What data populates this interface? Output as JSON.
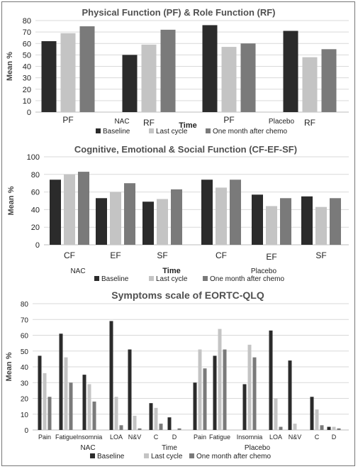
{
  "colors": {
    "baseline": "#2b2b2b",
    "last_cycle": "#c4c4c4",
    "one_month": "#7a7a7a",
    "grid": "#d9d9d9"
  },
  "chart_data": [
    {
      "type": "bar",
      "title": "Physical Function (PF) & Role Function (RF)",
      "ylabel": "Mean %",
      "xlabel": "Time",
      "ylim": [
        0,
        80
      ],
      "yticks": [
        0,
        10,
        20,
        30,
        40,
        50,
        60,
        70,
        80
      ],
      "categories": [
        "PF",
        "RF",
        "PF",
        "RF"
      ],
      "groups": [
        "NAC",
        "Placebo"
      ],
      "legend_position": "bottom",
      "series": [
        {
          "name": "Baseline",
          "values": [
            62,
            50,
            76,
            71
          ]
        },
        {
          "name": "Last cycle",
          "values": [
            69,
            59,
            57,
            48
          ]
        },
        {
          "name": "One month after chemo",
          "values": [
            75,
            72,
            60,
            55
          ]
        }
      ]
    },
    {
      "type": "bar",
      "title": "Cognitive, Emotional & Social Function (CF-EF-SF)",
      "ylabel": "Mean %",
      "xlabel": "Time",
      "ylim": [
        0,
        100
      ],
      "yticks": [
        0,
        20,
        40,
        60,
        80,
        100
      ],
      "categories": [
        "CF",
        "EF",
        "SF",
        "CF",
        "EF",
        "SF"
      ],
      "groups": [
        "NAC",
        "Placebo"
      ],
      "legend_position": "bottom",
      "series": [
        {
          "name": "Baseline",
          "values": [
            74,
            53,
            49,
            74,
            57,
            55
          ]
        },
        {
          "name": "Last cycle",
          "values": [
            80,
            60,
            52,
            65,
            44,
            43
          ]
        },
        {
          "name": "One month after chemo",
          "values": [
            83,
            70,
            63,
            74,
            53,
            53
          ]
        }
      ]
    },
    {
      "type": "bar",
      "title": "Symptoms scale of EORTC-QLQ",
      "ylabel": "Mean %",
      "xlabel": "Time",
      "ylim": [
        0,
        80
      ],
      "yticks": [
        0,
        10,
        20,
        30,
        40,
        50,
        60,
        70,
        80
      ],
      "categories": [
        "Pain",
        "Fatigue",
        "Insomnia",
        "LOA",
        "N&V",
        "C",
        "D",
        "Pain",
        "Fatigue",
        "Insomnia",
        "LOA",
        "N&V",
        "C",
        "D"
      ],
      "groups": [
        "NAC",
        "Placebo"
      ],
      "legend_position": "bottom",
      "series": [
        {
          "name": "Baseline",
          "values": [
            47,
            61,
            35,
            69,
            51,
            17,
            8,
            30,
            47,
            29,
            63,
            44,
            21,
            2
          ]
        },
        {
          "name": "Last cycle",
          "values": [
            36,
            46,
            29,
            21,
            9,
            14,
            0,
            51,
            64,
            54,
            20,
            4,
            13,
            2
          ]
        },
        {
          "name": "One month after chemo",
          "values": [
            21,
            30,
            18,
            3,
            1,
            4,
            1,
            39,
            51,
            46,
            2,
            0,
            3,
            1
          ]
        }
      ]
    }
  ]
}
